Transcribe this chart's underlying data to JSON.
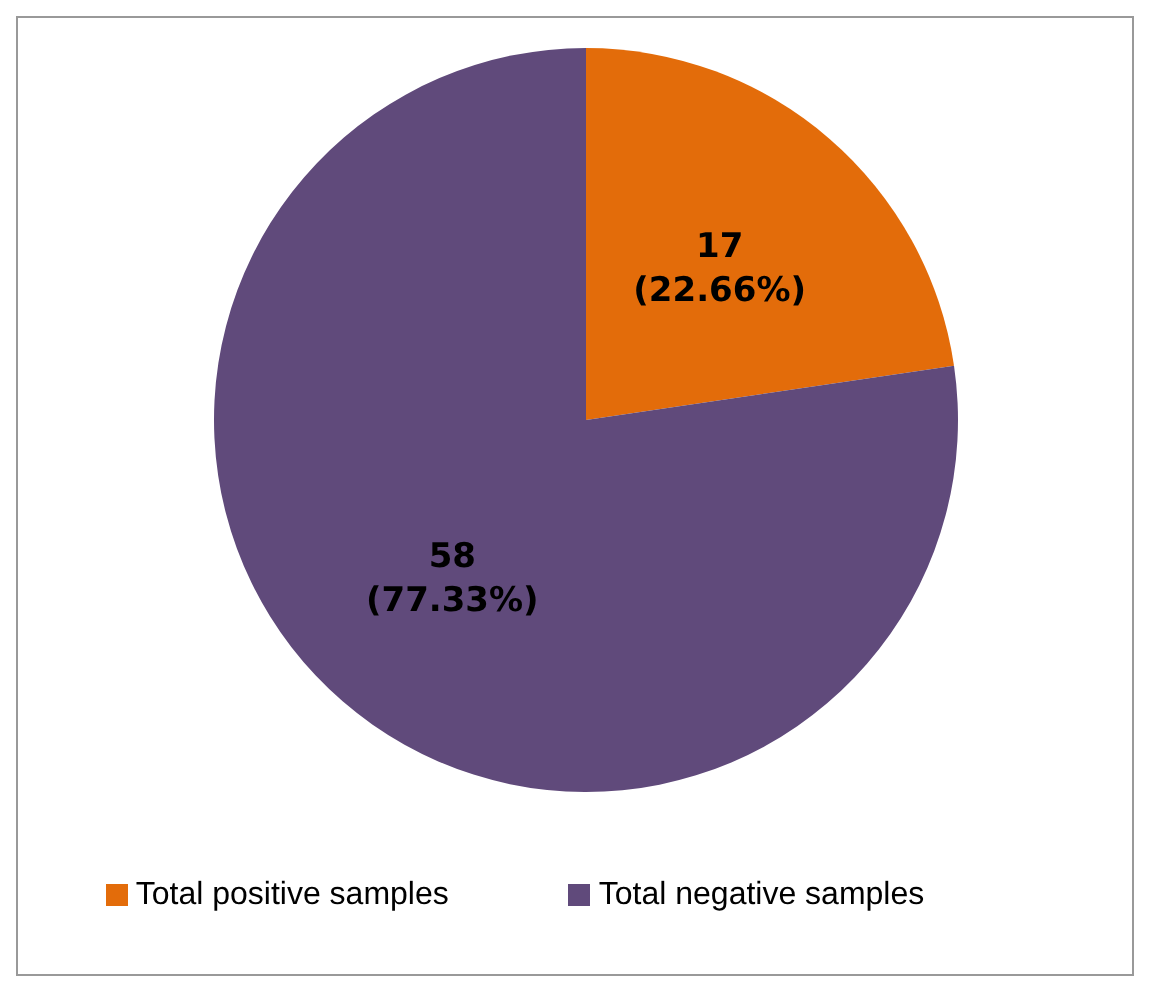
{
  "chart_data": {
    "type": "pie",
    "categories": [
      "Total positive samples",
      "Total negative samples"
    ],
    "values": [
      17,
      58
    ],
    "colors": [
      "#e36c0a",
      "#604a7b"
    ],
    "value_labels": [
      "17 (22.66%)",
      "58 (77.33%)"
    ],
    "legend": "bottom"
  }
}
